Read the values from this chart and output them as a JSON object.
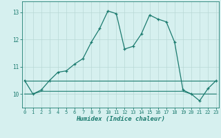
{
  "xlabel": "Humidex (Indice chaleur)",
  "x": [
    0,
    1,
    2,
    3,
    4,
    5,
    6,
    7,
    8,
    9,
    10,
    11,
    12,
    13,
    14,
    15,
    16,
    17,
    18,
    19,
    20,
    21,
    22,
    23
  ],
  "y_main": [
    10.5,
    10.0,
    10.15,
    10.5,
    10.8,
    10.85,
    11.1,
    11.3,
    11.9,
    12.4,
    13.05,
    12.95,
    11.65,
    11.75,
    12.2,
    12.9,
    12.75,
    12.65,
    11.9,
    10.15,
    10.0,
    9.75,
    10.2,
    10.5
  ],
  "y_min": [
    10.0,
    10.0,
    10.1,
    10.1,
    10.1,
    10.1,
    10.1,
    10.1,
    10.1,
    10.1,
    10.1,
    10.1,
    10.1,
    10.1,
    10.1,
    10.1,
    10.1,
    10.1,
    10.1,
    10.1,
    10.0,
    10.0,
    10.0,
    10.0
  ],
  "y_max": [
    10.5,
    10.5,
    10.5,
    10.5,
    10.5,
    10.5,
    10.5,
    10.5,
    10.5,
    10.5,
    10.5,
    10.5,
    10.5,
    10.5,
    10.5,
    10.5,
    10.5,
    10.5,
    10.5,
    10.5,
    10.5,
    10.5,
    10.5,
    10.5
  ],
  "line_color": "#1a7a6e",
  "bg_color": "#d6f0ef",
  "grid_color": "#b8d8d6",
  "ylim": [
    9.5,
    13.4
  ],
  "yticks": [
    10,
    11,
    12,
    13
  ],
  "xticks": [
    0,
    1,
    2,
    3,
    4,
    5,
    6,
    7,
    8,
    9,
    10,
    11,
    12,
    13,
    14,
    15,
    16,
    17,
    18,
    19,
    20,
    21,
    22,
    23
  ],
  "xlim": [
    -0.3,
    23.3
  ]
}
